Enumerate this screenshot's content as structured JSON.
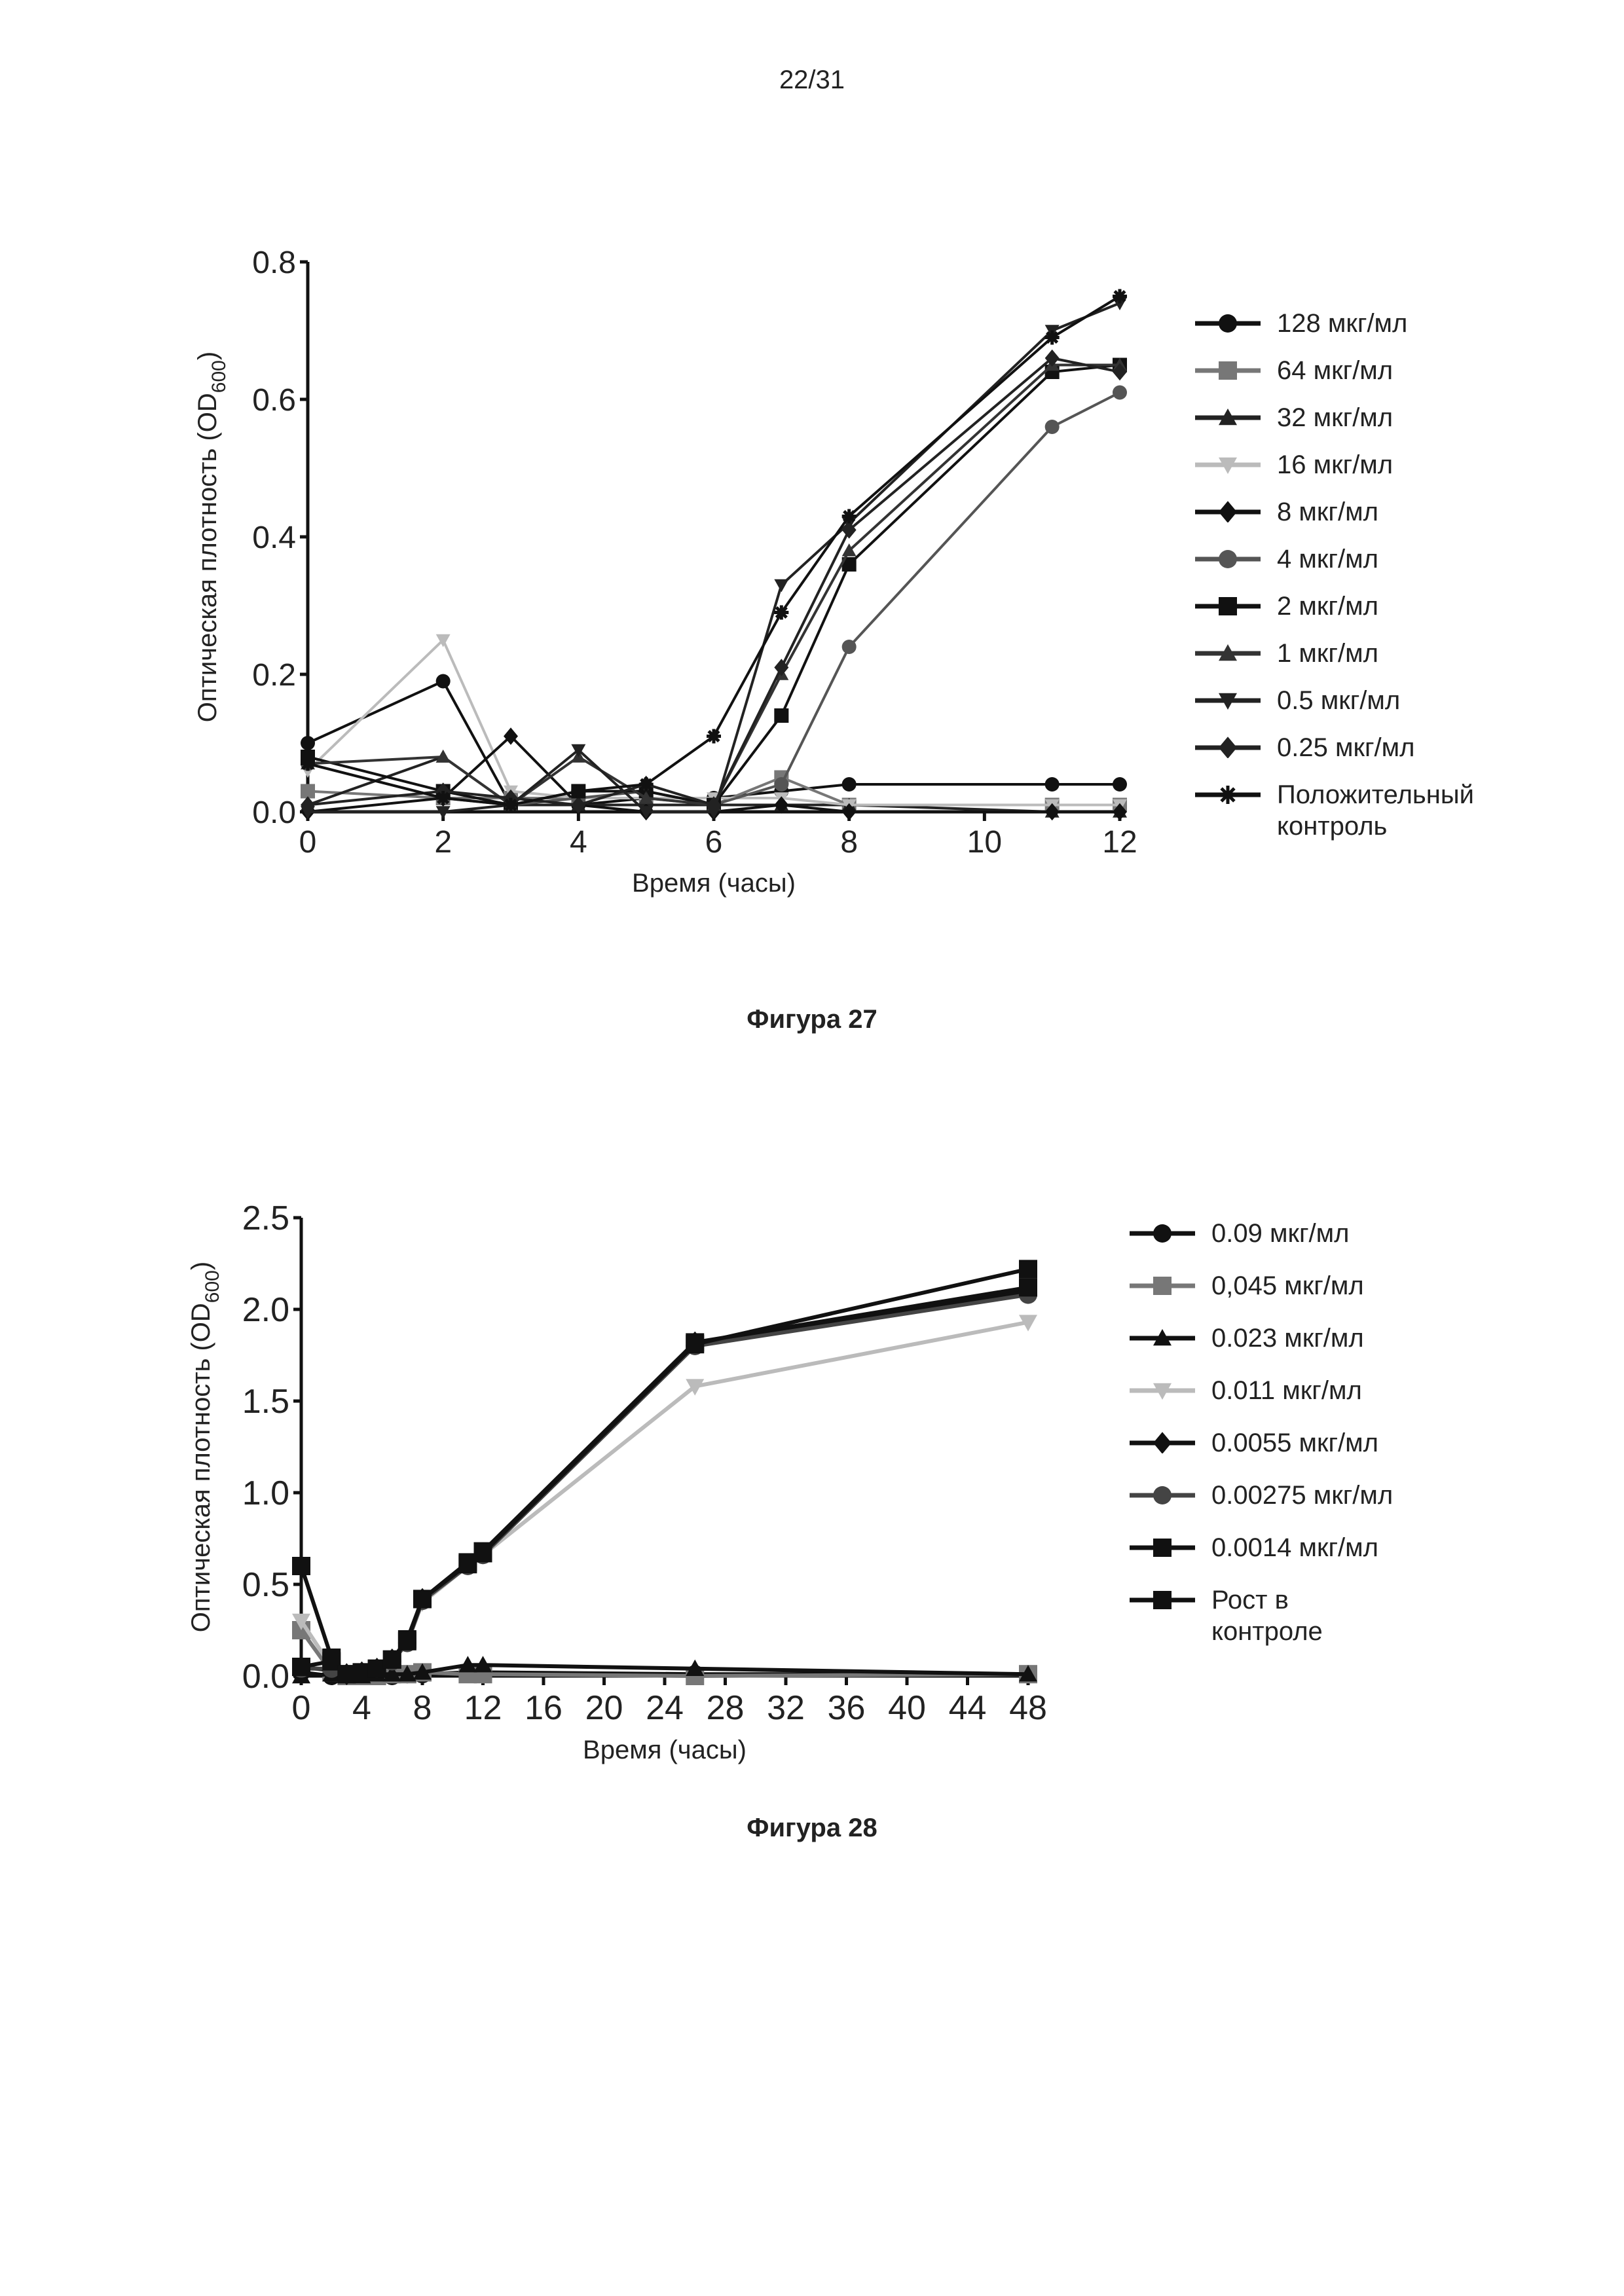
{
  "page": {
    "number": "22/31"
  },
  "figures": [
    {
      "caption": "Фигура 27"
    },
    {
      "caption": "Фигура 28"
    }
  ],
  "chart_data": [
    {
      "type": "line",
      "title": "",
      "xlabel": "Время (часы)",
      "ylabel": "Оптическая плотность (OD600)",
      "xlim": [
        0,
        12
      ],
      "ylim": [
        0,
        0.8
      ],
      "xticks": [
        0,
        2,
        4,
        6,
        8,
        10,
        12
      ],
      "yticks": [
        "0.0",
        "0.2",
        "0.4",
        "0.6",
        "0.8"
      ],
      "x": [
        0,
        2,
        3,
        4,
        5,
        6,
        7,
        8,
        11,
        12
      ],
      "grid": false,
      "legend_position": "right",
      "series": [
        {
          "name": "128 мкг/мл",
          "marker": "circle",
          "color": "#111111",
          "values": [
            0.1,
            0.19,
            0.01,
            0.01,
            0.02,
            0.02,
            0.03,
            0.04,
            0.04,
            0.04
          ]
        },
        {
          "name": "64 мкг/мл",
          "marker": "square",
          "color": "#777777",
          "values": [
            0.03,
            0.02,
            0.02,
            0.02,
            0.02,
            0.01,
            0.05,
            0.01,
            0.01,
            0.01
          ]
        },
        {
          "name": "32 мкг/мл",
          "marker": "triangle-up",
          "color": "#222222",
          "values": [
            0.01,
            0.08,
            0.01,
            0.01,
            0.01,
            0.01,
            0.01,
            0.01,
            0.0,
            0.0
          ]
        },
        {
          "name": "16 мкг/мл",
          "marker": "triangle-down",
          "color": "#bbbbbb",
          "values": [
            0.06,
            0.25,
            0.03,
            0.02,
            0.02,
            0.02,
            0.02,
            0.01,
            0.01,
            0.01
          ]
        },
        {
          "name": "8 мкг/мл",
          "marker": "diamond",
          "color": "#111111",
          "values": [
            0.0,
            0.02,
            0.11,
            0.01,
            0.0,
            0.0,
            0.01,
            0.0,
            0.0,
            0.0
          ]
        },
        {
          "name": "4 мкг/мл",
          "marker": "circle",
          "color": "#555555",
          "values": [
            0.07,
            0.02,
            0.01,
            0.02,
            0.03,
            0.01,
            0.04,
            0.24,
            0.56,
            0.61
          ]
        },
        {
          "name": "2 мкг/мл",
          "marker": "square",
          "color": "#111111",
          "values": [
            0.08,
            0.03,
            0.01,
            0.03,
            0.03,
            0.01,
            0.14,
            0.36,
            0.64,
            0.65
          ]
        },
        {
          "name": "1 мкг/мл",
          "marker": "triangle-up",
          "color": "#333333",
          "values": [
            0.07,
            0.08,
            0.01,
            0.08,
            0.02,
            0.01,
            0.2,
            0.38,
            0.65,
            0.65
          ]
        },
        {
          "name": "0.5 мкг/мл",
          "marker": "triangle-down",
          "color": "#222222",
          "values": [
            0.0,
            0.0,
            0.01,
            0.09,
            0.0,
            0.0,
            0.33,
            0.42,
            0.7,
            0.74
          ]
        },
        {
          "name": "0.25 мкг/мл",
          "marker": "diamond",
          "color": "#222222",
          "values": [
            0.01,
            0.03,
            0.02,
            0.01,
            0.04,
            0.01,
            0.21,
            0.41,
            0.66,
            0.64
          ]
        },
        {
          "name": "Положительный\nконтроль",
          "marker": "star",
          "color": "#111111",
          "values": [
            0.07,
            0.02,
            0.01,
            0.03,
            0.04,
            0.11,
            0.29,
            0.43,
            0.69,
            0.75
          ]
        }
      ]
    },
    {
      "type": "line",
      "title": "",
      "xlabel": "Время (часы)",
      "ylabel": "Оптическая плотность (OD600)",
      "xlim": [
        0,
        48
      ],
      "ylim": [
        0,
        2.5
      ],
      "xticks": [
        0,
        4,
        8,
        12,
        16,
        20,
        24,
        28,
        32,
        36,
        40,
        44,
        48
      ],
      "yticks": [
        "0.0",
        "0.5",
        "1.0",
        "1.5",
        "2.0",
        "2.5"
      ],
      "x": [
        0,
        2,
        3,
        4,
        5,
        6,
        7,
        8,
        11,
        12,
        26,
        48
      ],
      "grid": false,
      "legend_position": "right",
      "series": [
        {
          "name": "0.09 мкг/мл",
          "marker": "circle",
          "color": "#111111",
          "values": [
            0.02,
            0.0,
            0.0,
            0.0,
            0.0,
            0.0,
            0.01,
            0.01,
            0.02,
            0.02,
            0.01,
            0.01
          ]
        },
        {
          "name": "0,045 мкг/мл",
          "marker": "square",
          "color": "#777777",
          "values": [
            0.25,
            0.02,
            0.0,
            0.0,
            0.0,
            0.01,
            0.01,
            0.02,
            0.01,
            0.01,
            0.0,
            0.01
          ]
        },
        {
          "name": "0.023 мкг/мл",
          "marker": "triangle-up",
          "color": "#111111",
          "values": [
            0.0,
            0.01,
            0.0,
            0.0,
            0.01,
            0.01,
            0.01,
            0.02,
            0.06,
            0.06,
            0.04,
            0.01
          ]
        },
        {
          "name": "0.011 мкг/мл",
          "marker": "triangle-down",
          "color": "#bbbbbb",
          "values": [
            0.3,
            0.05,
            0.01,
            0.02,
            0.04,
            0.08,
            0.18,
            0.4,
            0.6,
            0.66,
            1.58,
            1.93
          ]
        },
        {
          "name": "0.0055 мкг/мл",
          "marker": "diamond",
          "color": "#111111",
          "values": [
            0.05,
            0.03,
            0.01,
            0.02,
            0.04,
            0.09,
            0.19,
            0.42,
            0.61,
            0.67,
            1.82,
            2.1
          ]
        },
        {
          "name": "0.00275 мкг/мл",
          "marker": "circle",
          "color": "#444444",
          "values": [
            0.04,
            0.04,
            0.01,
            0.02,
            0.04,
            0.08,
            0.18,
            0.41,
            0.6,
            0.66,
            1.8,
            2.08
          ]
        },
        {
          "name": "0.0014 мкг/мл",
          "marker": "square",
          "color": "#111111",
          "values": [
            0.05,
            0.08,
            0.01,
            0.02,
            0.04,
            0.09,
            0.2,
            0.42,
            0.62,
            0.68,
            1.82,
            2.12
          ]
        },
        {
          "name": "Рост в\nконтроле",
          "marker": "square",
          "color": "#111111",
          "values": [
            0.6,
            0.1,
            0.01,
            0.02,
            0.04,
            0.09,
            0.19,
            0.42,
            0.61,
            0.67,
            1.81,
            2.22
          ]
        }
      ]
    }
  ]
}
